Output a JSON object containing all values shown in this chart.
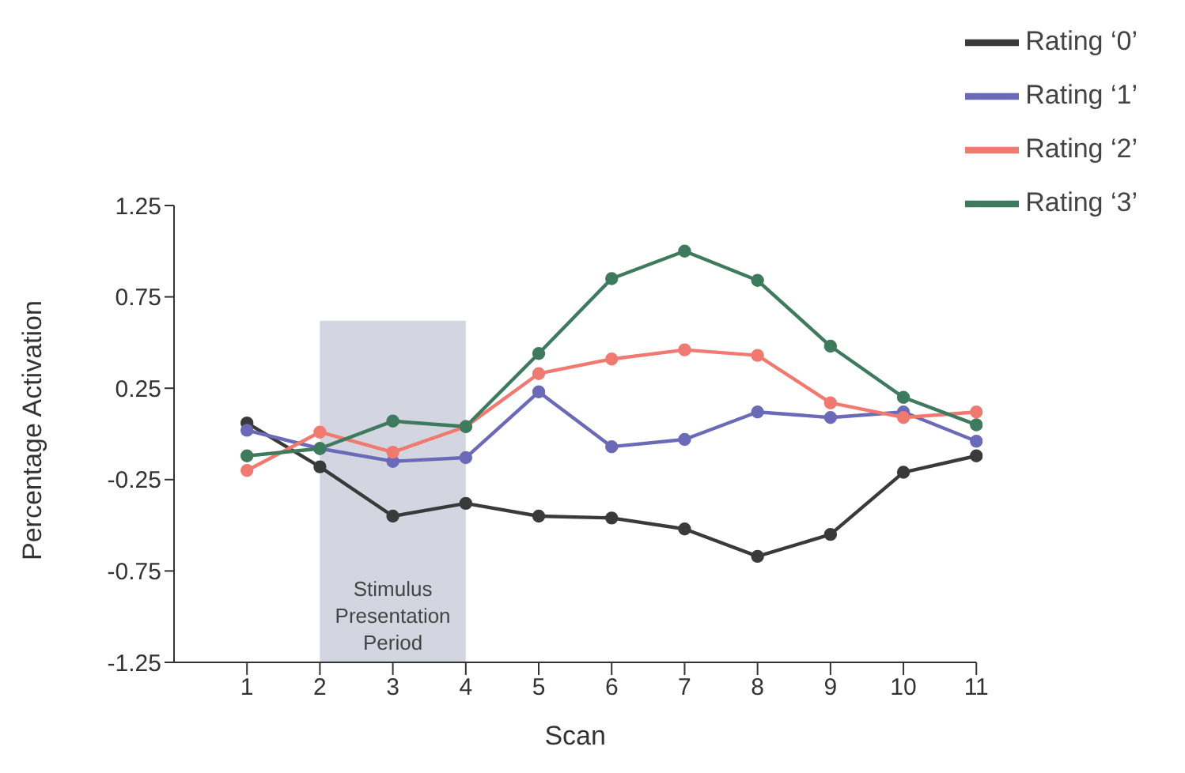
{
  "chart_data": {
    "type": "line",
    "xlabel": "Scan",
    "ylabel": "Percentage Activation",
    "x": [
      1,
      2,
      3,
      4,
      5,
      6,
      7,
      8,
      9,
      10,
      11
    ],
    "series": [
      {
        "name": "Rating ‘0’",
        "color": "#3a3a3a",
        "values": [
          0.06,
          -0.18,
          -0.45,
          -0.38,
          -0.45,
          -0.46,
          -0.52,
          -0.67,
          -0.55,
          -0.21,
          -0.12
        ]
      },
      {
        "name": "Rating ‘1’",
        "color": "#6a6ab8",
        "values": [
          0.02,
          -0.08,
          -0.15,
          -0.13,
          0.23,
          -0.07,
          -0.03,
          0.12,
          0.09,
          0.12,
          -0.04
        ]
      },
      {
        "name": "Rating ‘2’",
        "color": "#f07a70",
        "values": [
          -0.2,
          0.01,
          -0.1,
          0.04,
          0.33,
          0.41,
          0.46,
          0.43,
          0.17,
          0.09,
          0.12
        ]
      },
      {
        "name": "Rating ‘3’",
        "color": "#3d7a5e",
        "values": [
          -0.12,
          -0.08,
          0.07,
          0.04,
          0.44,
          0.85,
          1.0,
          0.84,
          0.48,
          0.2,
          0.05
        ]
      }
    ],
    "xlim": [
      0,
      11
    ],
    "xticks": [
      1,
      2,
      3,
      4,
      5,
      6,
      7,
      8,
      9,
      10,
      11
    ],
    "ylim": [
      -1.25,
      1.25
    ],
    "yticks": [
      -1.25,
      -0.75,
      -0.25,
      0.25,
      0.75,
      1.25
    ],
    "bands": [
      {
        "axis": "x",
        "from": 2,
        "to": 4,
        "label": "Stimulus Presentation Period",
        "color": "#d3d5e0"
      }
    ],
    "legend": "top right",
    "marker": "circle",
    "line_style": "solid",
    "grid": false
  }
}
